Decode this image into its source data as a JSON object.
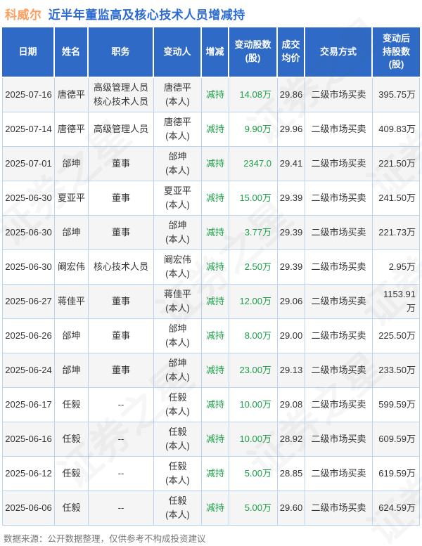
{
  "title": {
    "stock_name": "科威尔",
    "text": "近半年董监高及核心技术人员增减持"
  },
  "chart_data": {
    "type": "table",
    "title": "科威尔 近半年董监高及核心技术人员增减持",
    "headers": [
      "日期",
      "姓名",
      "职务",
      "变动人",
      "增减",
      "变动股数\n(股)",
      "成交\n均价",
      "交易方式",
      "变动后\n持股数\n(股)"
    ],
    "rows": [
      [
        "2025-07-16",
        "唐德平",
        "高级管理人员\n核心技术人员",
        "唐德平\n(本人)",
        "减持",
        "14.08万",
        "29.86",
        "二级市场买卖",
        "395.75万"
      ],
      [
        "2025-07-14",
        "唐德平",
        "高级管理人员",
        "唐德平\n(本人)",
        "减持",
        "9.90万",
        "29.96",
        "二级市场买卖",
        "409.83万"
      ],
      [
        "2025-07-01",
        "邰坤",
        "董事",
        "邰坤\n(本人)",
        "减持",
        "2347.0",
        "29.41",
        "二级市场买卖",
        "221.50万"
      ],
      [
        "2025-06-30",
        "夏亚平",
        "董事",
        "夏亚平\n(本人)",
        "减持",
        "15.00万",
        "29.39",
        "二级市场买卖",
        "241.50万"
      ],
      [
        "2025-06-30",
        "邰坤",
        "董事",
        "邰坤\n(本人)",
        "减持",
        "3.77万",
        "29.39",
        "二级市场买卖",
        "221.73万"
      ],
      [
        "2025-06-30",
        "阚宏伟",
        "核心技术人员",
        "阚宏伟\n(本人)",
        "减持",
        "2.50万",
        "29.39",
        "二级市场买卖",
        "2.95万"
      ],
      [
        "2025-06-27",
        "蒋佳平",
        "董事",
        "蒋佳平\n(本人)",
        "减持",
        "12.00万",
        "29.06",
        "二级市场买卖",
        "1153.91万"
      ],
      [
        "2025-06-26",
        "邰坤",
        "董事",
        "邰坤\n(本人)",
        "减持",
        "8.00万",
        "29.00",
        "二级市场买卖",
        "225.50万"
      ],
      [
        "2025-06-24",
        "邰坤",
        "董事",
        "邰坤\n(本人)",
        "减持",
        "23.00万",
        "29.13",
        "二级市场买卖",
        "233.50万"
      ],
      [
        "2025-06-17",
        "任毅",
        "--",
        "任毅\n(本人)",
        "减持",
        "10.00万",
        "29.08",
        "二级市场买卖",
        "599.59万"
      ],
      [
        "2025-06-16",
        "任毅",
        "--",
        "任毅\n(本人)",
        "减持",
        "10.00万",
        "28.92",
        "二级市场买卖",
        "609.59万"
      ],
      [
        "2025-06-12",
        "任毅",
        "--",
        "任毅\n(本人)",
        "减持",
        "5.00万",
        "28.85",
        "二级市场买卖",
        "619.59万"
      ],
      [
        "2025-06-06",
        "任毅",
        "--",
        "任毅\n(本人)",
        "减持",
        "5.00万",
        "29.60",
        "二级市场买卖",
        "624.59万"
      ]
    ]
  },
  "footer": {
    "source_note": "数据来源：公开数据整理，仅供参考不构成投资建议"
  },
  "watermark": {
    "text": "证券之星"
  },
  "colors": {
    "title_orange": "#FF9D5C",
    "title_blue": "#2B6BD3",
    "header_bg": "#2E6AC6",
    "header_text": "#FFFFFF",
    "decrease_green": "#1CA049",
    "border": "#B9D6F0",
    "row_alt_bg": "#F5F5F5",
    "text": "#333333",
    "footer_text": "#777777"
  }
}
